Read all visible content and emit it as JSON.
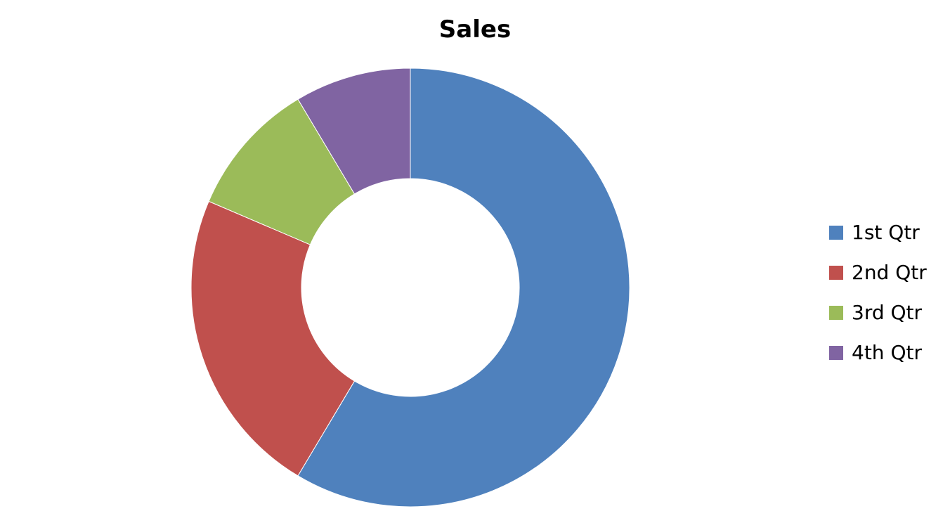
{
  "chart_data": {
    "type": "pie",
    "variant": "doughnut",
    "title": "Sales",
    "categories": [
      "1st Qtr",
      "2nd Qtr",
      "3rd Qtr",
      "4th Qtr"
    ],
    "values": [
      8.2,
      3.2,
      1.4,
      1.2
    ],
    "colors": [
      "#4F81BD",
      "#C0504D",
      "#9BBB59",
      "#8064A2"
    ],
    "legend_position": "right",
    "start_angle_deg": 0,
    "direction": "clockwise"
  }
}
